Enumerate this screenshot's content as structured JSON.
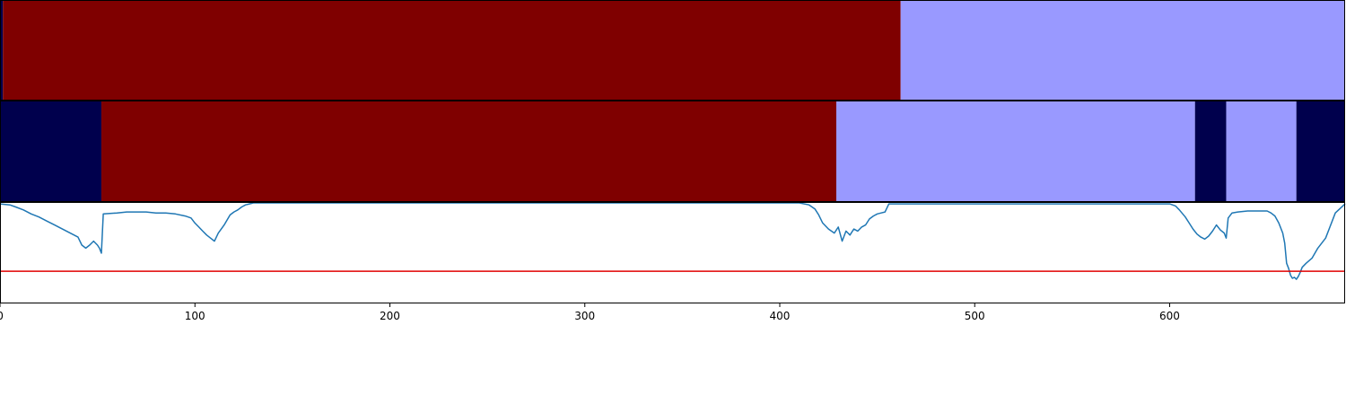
{
  "chart_data": {
    "type": "line",
    "title": "",
    "xlabel": "",
    "ylabel": "",
    "xlim": [
      0,
      690
    ],
    "ylim": [
      0,
      1
    ],
    "grid": false,
    "xticks": [
      0,
      100,
      200,
      300,
      400,
      500,
      600
    ],
    "segment_tracks": [
      {
        "name": "",
        "segments": [
          {
            "start": 0,
            "end": 1.5,
            "color": "#00004d"
          },
          {
            "start": 1.5,
            "end": 462,
            "color": "#7f0000"
          },
          {
            "start": 462,
            "end": 690,
            "color": "#9999ff"
          }
        ]
      },
      {
        "name": "",
        "segments": [
          {
            "start": 0,
            "end": 52,
            "color": "#00004d"
          },
          {
            "start": 52,
            "end": 429,
            "color": "#7f0000"
          },
          {
            "start": 429,
            "end": 613,
            "color": "#9999ff"
          },
          {
            "start": 613,
            "end": 629,
            "color": "#00004d"
          },
          {
            "start": 629,
            "end": 665,
            "color": "#9999ff"
          },
          {
            "start": 665,
            "end": 690,
            "color": "#00004d"
          }
        ]
      }
    ],
    "threshold": {
      "value": 0.32,
      "color": "#e00000"
    },
    "series": [
      {
        "name": "",
        "color": "#1f77b4",
        "x": [
          0,
          5,
          8,
          12,
          16,
          20,
          24,
          28,
          32,
          36,
          40,
          42,
          44,
          46,
          48,
          50,
          51,
          52,
          53,
          60,
          65,
          70,
          75,
          80,
          85,
          90,
          95,
          98,
          100,
          102,
          104,
          106,
          108,
          110,
          112,
          115,
          118,
          120,
          122,
          124,
          126,
          128,
          130,
          140,
          200,
          300,
          340,
          400,
          410,
          415,
          418,
          420,
          422,
          425,
          428,
          430,
          432,
          434,
          436,
          438,
          440,
          442,
          444,
          446,
          448,
          450,
          452,
          454,
          456,
          600,
          603,
          605,
          608,
          610,
          612,
          614,
          616,
          618,
          620,
          622,
          624,
          626,
          628,
          629,
          630,
          632,
          635,
          640,
          645,
          650,
          652,
          654,
          656,
          658,
          659,
          660,
          661,
          662,
          663,
          664,
          665,
          666,
          667,
          668,
          670,
          673,
          676,
          680,
          685,
          690
        ],
        "y": [
          0.99,
          0.98,
          0.96,
          0.93,
          0.89,
          0.86,
          0.82,
          0.78,
          0.74,
          0.7,
          0.66,
          0.58,
          0.55,
          0.58,
          0.62,
          0.58,
          0.55,
          0.5,
          0.89,
          0.9,
          0.91,
          0.91,
          0.91,
          0.9,
          0.9,
          0.89,
          0.87,
          0.85,
          0.8,
          0.76,
          0.72,
          0.68,
          0.65,
          0.62,
          0.7,
          0.78,
          0.88,
          0.91,
          0.93,
          0.96,
          0.98,
          0.99,
          1.0,
          1.0,
          1.0,
          1.0,
          1.0,
          1.0,
          1.0,
          0.98,
          0.94,
          0.88,
          0.8,
          0.74,
          0.7,
          0.76,
          0.62,
          0.72,
          0.68,
          0.74,
          0.72,
          0.76,
          0.78,
          0.84,
          0.87,
          0.89,
          0.9,
          0.91,
          0.99,
          0.99,
          0.97,
          0.93,
          0.86,
          0.8,
          0.74,
          0.69,
          0.66,
          0.64,
          0.67,
          0.72,
          0.78,
          0.73,
          0.7,
          0.65,
          0.85,
          0.9,
          0.91,
          0.92,
          0.92,
          0.92,
          0.9,
          0.87,
          0.8,
          0.7,
          0.6,
          0.4,
          0.35,
          0.28,
          0.25,
          0.26,
          0.24,
          0.27,
          0.31,
          0.36,
          0.4,
          0.45,
          0.55,
          0.65,
          0.9,
          0.99
        ]
      }
    ]
  }
}
